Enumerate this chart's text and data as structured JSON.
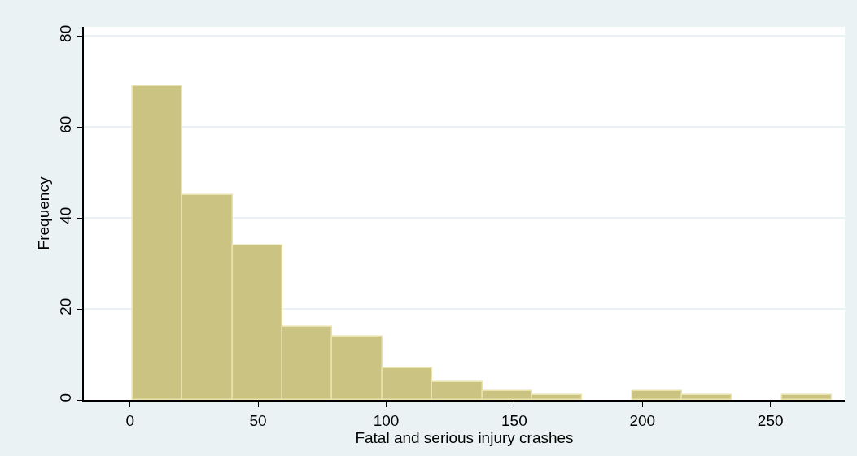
{
  "chart_data": {
    "type": "histogram",
    "xlabel": "Fatal and serious injury crashes",
    "ylabel": "Frequency",
    "bins": [
      1,
      20.5,
      40,
      59.5,
      79,
      98.5,
      118,
      137.5,
      157,
      176.5,
      196,
      215.5,
      235,
      254.5,
      274
    ],
    "values": [
      69,
      45,
      34,
      16,
      14,
      7,
      4,
      2,
      1,
      0,
      2,
      1,
      0,
      1
    ],
    "color": "#cbc382",
    "xlim": [
      -18,
      279
    ],
    "xticks": [
      0,
      50,
      100,
      150,
      200,
      250
    ],
    "ylim": [
      0,
      82
    ],
    "yticks": [
      0,
      20,
      40,
      60,
      80
    ],
    "grid": "y"
  }
}
